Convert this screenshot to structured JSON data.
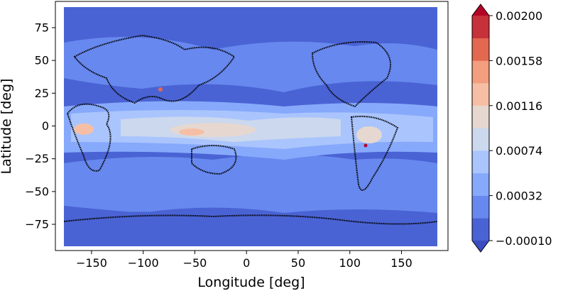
{
  "chart_data": {
    "type": "heatmap",
    "subtype": "filled contour map",
    "title": "",
    "xlabel": "Longitude [deg]",
    "ylabel": "Latitude [deg]",
    "xlim": [
      -185,
      195
    ],
    "ylim": [
      -95,
      95
    ],
    "x_ticks": [
      -150,
      -100,
      -50,
      0,
      50,
      100,
      150
    ],
    "x_tick_labels": [
      "−150",
      "−100",
      "−50",
      "0",
      "50",
      "100",
      "150"
    ],
    "y_ticks": [
      -75,
      -50,
      -25,
      0,
      25,
      50,
      75
    ],
    "y_tick_labels": [
      "−75",
      "−50",
      "−25",
      "0",
      "25",
      "50",
      "75"
    ],
    "colorbar": {
      "levels": [
        -0.0001,
        0.0001,
        0.00032,
        0.00053,
        0.00074,
        0.00095,
        0.00116,
        0.00137,
        0.00158,
        0.00179,
        0.002
      ],
      "tick_values": [
        -0.0001,
        0.00032,
        0.00074,
        0.00116,
        0.00158,
        0.002
      ],
      "tick_labels": [
        "−0.00010",
        "0.00032",
        "0.00074",
        "0.00116",
        "0.00158",
        "0.00200"
      ],
      "colors": [
        "#4a63d4",
        "#6788ee",
        "#87a9fc",
        "#aac4fd",
        "#cbd8ee",
        "#e6d8d0",
        "#f6bfa5",
        "#f39e7e",
        "#e2684f",
        "#c7313a",
        "#b40426"
      ],
      "extend": "both",
      "under_color": "#3b4cc0",
      "over_color": "#b40426"
    },
    "grid": false,
    "land_outlines": "coastlines drawn as black dotted lines"
  }
}
